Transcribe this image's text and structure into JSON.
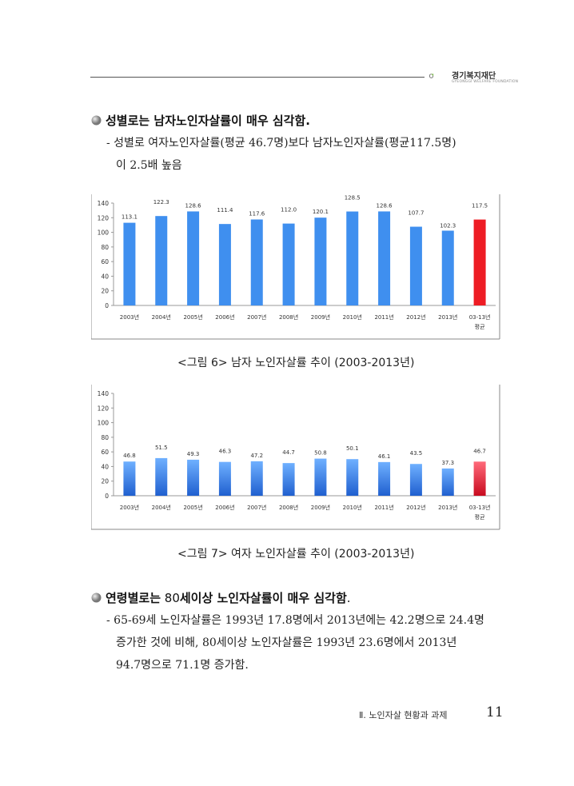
{
  "header": {
    "logo_text": "경기복지재단",
    "logo_sub": "GYEONGGI WELFARE FOUNDATION"
  },
  "section1": {
    "heading": "성별로는 남자노인자살률이 매우 심각함.",
    "line1": "- 성별로  여자노인자살률(평균  46.7명)보다  남자노인자살률(평균117.5명)",
    "line2": "이  2.5배  높음"
  },
  "chart_data": [
    {
      "type": "bar",
      "categories": [
        "2003년",
        "2004년",
        "2005년",
        "2006년",
        "2007년",
        "2008년",
        "2009년",
        "2010년",
        "2011년",
        "2012년",
        "2013년",
        "03-13년 평균"
      ],
      "values": [
        113.1,
        122.3,
        128.6,
        111.4,
        117.6,
        112.0,
        120.1,
        128.5,
        128.6,
        107.7,
        102.3,
        117.5
      ],
      "labels": [
        "113.1",
        "122.3",
        "128.6",
        "111.4",
        "117.6",
        "112.0",
        "120.1",
        "128.5",
        "128.6",
        "107.7",
        "102.3",
        "117.5"
      ],
      "ylim": [
        0,
        140
      ],
      "yticks": [
        0,
        20,
        40,
        60,
        80,
        100,
        120,
        140
      ],
      "bar_color": "#3f8fef",
      "highlight_color": "#ee1c24",
      "grid": false
    },
    {
      "type": "bar",
      "categories": [
        "2003년",
        "2004년",
        "2005년",
        "2006년",
        "2007년",
        "2008년",
        "2009년",
        "2010년",
        "2011년",
        "2012년",
        "2013년",
        "03-13년 평균"
      ],
      "values": [
        46.8,
        51.5,
        49.3,
        46.3,
        47.2,
        44.7,
        50.8,
        50.1,
        46.1,
        43.5,
        37.3,
        46.7
      ],
      "labels": [
        "46.8",
        "51.5",
        "49.3",
        "46.3",
        "47.2",
        "44.7",
        "50.8",
        "50.1",
        "46.1",
        "43.5",
        "37.3",
        "46.7"
      ],
      "ylim": [
        0,
        140
      ],
      "yticks": [
        0,
        20,
        40,
        60,
        80,
        100,
        120,
        140
      ],
      "bar_color": "#3f8fef",
      "highlight_color": "#ee1c24",
      "grid": false
    }
  ],
  "captions": {
    "fig6": "<그림 6> 남자 노인자살률 추이 (2003-2013년)",
    "fig7": "<그림 7> 여자 노인자살률 추이 (2003-2013년)"
  },
  "section2": {
    "heading_bold": "연령별로는",
    "heading_num": " 80",
    "heading_rest": "세이상 노인자살률이 매우 심각함",
    "heading_end": ".",
    "line1": "- 65-69세  노인자살률은  1993년  17.8명에서  2013년에는  42.2명으로  24.4명",
    "line2": "증가한  것에  비해,  80세이상  노인자살률은  1993년  23.6명에서  2013년",
    "line3": "94.7명으로  71.1명  증가함."
  },
  "footer": {
    "chapter": "Ⅱ. 노인자살 현황과 과제",
    "page": "11"
  }
}
